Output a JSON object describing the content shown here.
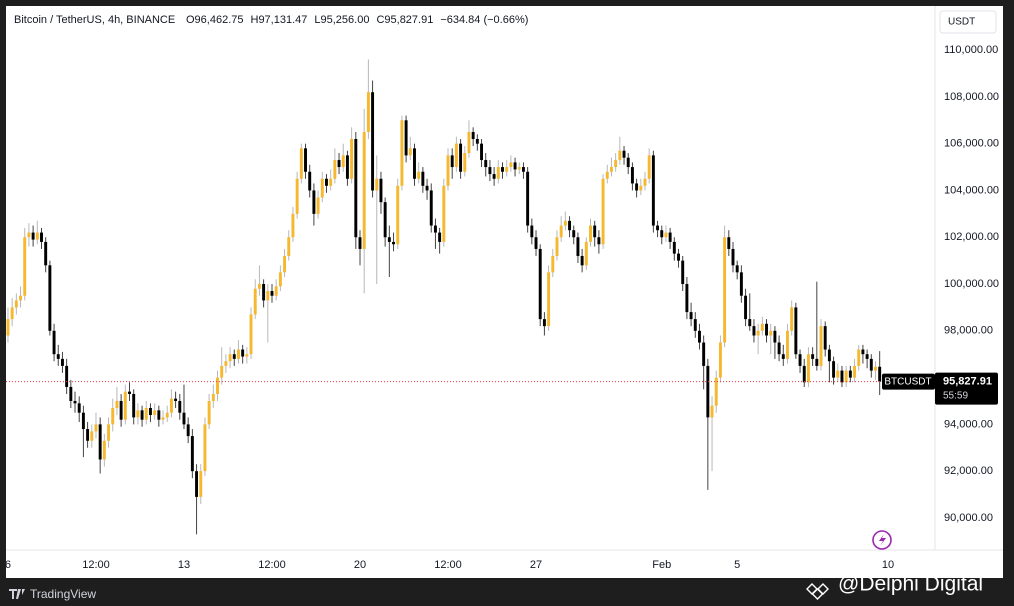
{
  "chart_data": {
    "type": "candlestick",
    "title": "Bitcoin / TetherUS, 4h, BINANCE",
    "ohlc_header": [
      "O96,462.75",
      "H97,131.47",
      "L95,256.00",
      "C95,827.91"
    ],
    "change": "−634.84 (−0.66%)",
    "currency": "USDT",
    "symbol": "BTCUSDT",
    "last_price": {
      "value": 95827.91,
      "label": "95,827.91"
    },
    "countdown": "55:59",
    "up_color": "#f5b82e",
    "down_color": "#000000",
    "grid": false,
    "brand": "TradingView",
    "watermark": "@Delphi Digital",
    "xlim": [
      -1.9,
      221.2
    ],
    "xticks": [
      {
        "value": 0,
        "label": "6"
      },
      {
        "value": 21,
        "label": "12:00"
      },
      {
        "value": 42,
        "label": "13"
      },
      {
        "value": 63,
        "label": "12:00"
      },
      {
        "value": 84,
        "label": "20"
      },
      {
        "value": 105,
        "label": "12:00"
      },
      {
        "value": 126,
        "label": "27"
      },
      {
        "value": 156,
        "label": "Feb"
      },
      {
        "value": 174,
        "label": "5"
      },
      {
        "value": 210,
        "label": "10"
      }
    ],
    "ylim": [
      88630,
      111800
    ],
    "yticks": [
      {
        "value": 90000,
        "label": "90,000.00"
      },
      {
        "value": 92000,
        "label": "92,000.00"
      },
      {
        "value": 94000,
        "label": "94,000.00"
      },
      {
        "value": 96000,
        "label": "96,000.00"
      },
      {
        "value": 98000,
        "label": "98,000.00"
      },
      {
        "value": 100000,
        "label": "100,000.00"
      },
      {
        "value": 102000,
        "label": "102,000.00"
      },
      {
        "value": 104000,
        "label": "104,000.00"
      },
      {
        "value": 106000,
        "label": "106,000.00"
      },
      {
        "value": 108000,
        "label": "108,000.00"
      },
      {
        "value": 110000,
        "label": "110,000.00"
      }
    ],
    "candles": [
      [
        97800,
        99000,
        97500,
        98500
      ],
      [
        98500,
        99400,
        98200,
        99000
      ],
      [
        99000,
        99600,
        98700,
        99300
      ],
      [
        99300,
        99900,
        99000,
        99500
      ],
      [
        99500,
        102400,
        99300,
        102000
      ],
      [
        102000,
        102600,
        101600,
        102200
      ],
      [
        102200,
        102500,
        101600,
        101900
      ],
      [
        101900,
        102700,
        101700,
        102200
      ],
      [
        102200,
        102400,
        101500,
        101800
      ],
      [
        101800,
        102000,
        100500,
        100800
      ],
      [
        100800,
        101000,
        97800,
        98000
      ],
      [
        98000,
        98300,
        96700,
        97000
      ],
      [
        97000,
        97400,
        96500,
        96800
      ],
      [
        96800,
        97100,
        96200,
        96500
      ],
      [
        96500,
        96800,
        95300,
        95600
      ],
      [
        95600,
        95900,
        94700,
        95000
      ],
      [
        95000,
        95400,
        94500,
        94900
      ],
      [
        94900,
        95200,
        94100,
        94500
      ],
      [
        94500,
        94800,
        92600,
        93800
      ],
      [
        93800,
        94100,
        93000,
        93300
      ],
      [
        93300,
        94000,
        93000,
        93700
      ],
      [
        93700,
        94500,
        93400,
        94000
      ],
      [
        94000,
        94300,
        91900,
        92500
      ],
      [
        92500,
        93600,
        92200,
        93300
      ],
      [
        93300,
        94300,
        93000,
        94000
      ],
      [
        94000,
        95100,
        93700,
        94700
      ],
      [
        94700,
        95600,
        94400,
        95000
      ],
      [
        95000,
        95300,
        93900,
        94200
      ],
      [
        94200,
        95700,
        94000,
        95400
      ],
      [
        95400,
        95800,
        95000,
        95300
      ],
      [
        95300,
        95500,
        94000,
        94300
      ],
      [
        94300,
        94900,
        94000,
        94600
      ],
      [
        94600,
        94800,
        93900,
        94200
      ],
      [
        94200,
        95000,
        94000,
        94700
      ],
      [
        94700,
        94900,
        94100,
        94400
      ],
      [
        94400,
        94900,
        94200,
        94600
      ],
      [
        94600,
        94800,
        93900,
        94200
      ],
      [
        94200,
        94600,
        94000,
        94300
      ],
      [
        94300,
        94800,
        94100,
        94500
      ],
      [
        94500,
        95500,
        94300,
        95100
      ],
      [
        95100,
        95400,
        94700,
        95000
      ],
      [
        95000,
        95300,
        94200,
        94500
      ],
      [
        94500,
        95700,
        93800,
        94000
      ],
      [
        94000,
        94300,
        93200,
        93500
      ],
      [
        93500,
        93800,
        91700,
        92000
      ],
      [
        92000,
        92300,
        89300,
        90900
      ],
      [
        90900,
        92300,
        90600,
        92000
      ],
      [
        92000,
        94300,
        91800,
        94000
      ],
      [
        94000,
        95300,
        93800,
        95000
      ],
      [
        95000,
        95700,
        94700,
        95300
      ],
      [
        95300,
        96300,
        95000,
        96000
      ],
      [
        96000,
        97300,
        95700,
        96500
      ],
      [
        96500,
        97000,
        96200,
        96700
      ],
      [
        96700,
        97300,
        96400,
        97000
      ],
      [
        97000,
        97200,
        96500,
        96800
      ],
      [
        96800,
        97600,
        96600,
        97200
      ],
      [
        97200,
        97400,
        96600,
        96900
      ],
      [
        96900,
        97300,
        96600,
        97000
      ],
      [
        97000,
        99000,
        96800,
        98700
      ],
      [
        98700,
        100200,
        98500,
        99800
      ],
      [
        99800,
        100800,
        99500,
        100000
      ],
      [
        100000,
        100200,
        99000,
        99300
      ],
      [
        99300,
        100000,
        97500,
        99700
      ],
      [
        99700,
        100000,
        99200,
        99500
      ],
      [
        99500,
        100200,
        99300,
        99900
      ],
      [
        99900,
        100800,
        99700,
        100500
      ],
      [
        100500,
        101500,
        100300,
        101200
      ],
      [
        101200,
        102300,
        101000,
        102000
      ],
      [
        102000,
        103300,
        101800,
        103000
      ],
      [
        103000,
        104800,
        102800,
        104500
      ],
      [
        104500,
        106000,
        104300,
        105800
      ],
      [
        105800,
        106000,
        104500,
        104800
      ],
      [
        104800,
        105100,
        103700,
        104000
      ],
      [
        104000,
        104300,
        102500,
        103000
      ],
      [
        103000,
        104000,
        102800,
        103700
      ],
      [
        103700,
        104800,
        103500,
        104500
      ],
      [
        104500,
        104700,
        103900,
        104200
      ],
      [
        104200,
        104900,
        104000,
        104500
      ],
      [
        104500,
        105800,
        104300,
        105300
      ],
      [
        105300,
        105600,
        104700,
        105000
      ],
      [
        105000,
        106000,
        104800,
        105500
      ],
      [
        105500,
        105700,
        104200,
        104500
      ],
      [
        104500,
        106700,
        104300,
        106200
      ],
      [
        106200,
        106500,
        101500,
        102000
      ],
      [
        102000,
        102300,
        100800,
        101500
      ],
      [
        101500,
        107500,
        99600,
        106500
      ],
      [
        106500,
        109600,
        106200,
        108200
      ],
      [
        108200,
        108700,
        103700,
        104000
      ],
      [
        104000,
        105500,
        100000,
        104500
      ],
      [
        104500,
        104800,
        103000,
        103500
      ],
      [
        103500,
        103700,
        101600,
        102000
      ],
      [
        102000,
        102500,
        100300,
        101800
      ],
      [
        101800,
        102200,
        101400,
        101700
      ],
      [
        101700,
        104500,
        101500,
        104200
      ],
      [
        104200,
        107200,
        104000,
        107000
      ],
      [
        107000,
        107200,
        105200,
        105500
      ],
      [
        105500,
        106300,
        105300,
        105800
      ],
      [
        105800,
        106000,
        104200,
        104500
      ],
      [
        104500,
        105200,
        104300,
        104800
      ],
      [
        104800,
        105000,
        103900,
        104200
      ],
      [
        104200,
        104500,
        103600,
        104000
      ],
      [
        104000,
        104300,
        102200,
        102500
      ],
      [
        102500,
        102800,
        101500,
        102200
      ],
      [
        102200,
        102400,
        101300,
        101800
      ],
      [
        101800,
        104500,
        101600,
        104200
      ],
      [
        104200,
        105800,
        104000,
        105500
      ],
      [
        105500,
        105800,
        104500,
        105000
      ],
      [
        105000,
        106300,
        104800,
        106000
      ],
      [
        106000,
        106200,
        104500,
        104800
      ],
      [
        104800,
        105900,
        104600,
        105600
      ],
      [
        105600,
        107000,
        105400,
        106500
      ],
      [
        106500,
        106700,
        105900,
        106200
      ],
      [
        106200,
        106400,
        105700,
        106000
      ],
      [
        106000,
        106200,
        105000,
        105300
      ],
      [
        105300,
        105600,
        104600,
        105000
      ],
      [
        105000,
        105300,
        104400,
        104700
      ],
      [
        104700,
        105000,
        104200,
        104500
      ],
      [
        104500,
        105300,
        104300,
        105000
      ],
      [
        105000,
        105200,
        104500,
        104800
      ],
      [
        104800,
        105300,
        104600,
        105000
      ],
      [
        105000,
        105500,
        104800,
        105200
      ],
      [
        105200,
        105400,
        104600,
        104900
      ],
      [
        104900,
        105200,
        104700,
        105000
      ],
      [
        105000,
        105200,
        104500,
        104800
      ],
      [
        104800,
        105000,
        102200,
        102500
      ],
      [
        102500,
        102800,
        101700,
        102000
      ],
      [
        102000,
        102300,
        101200,
        101500
      ],
      [
        101500,
        101700,
        98200,
        98500
      ],
      [
        98500,
        98800,
        97800,
        98200
      ],
      [
        98200,
        100800,
        98000,
        100500
      ],
      [
        100500,
        101500,
        100300,
        101200
      ],
      [
        101200,
        102300,
        101000,
        102000
      ],
      [
        102000,
        102900,
        101800,
        102500
      ],
      [
        102500,
        103100,
        102300,
        102700
      ],
      [
        102700,
        102900,
        102000,
        102300
      ],
      [
        102300,
        102500,
        101700,
        102000
      ],
      [
        102000,
        102200,
        100900,
        101200
      ],
      [
        101200,
        101500,
        100500,
        100800
      ],
      [
        100800,
        102000,
        100600,
        101800
      ],
      [
        101800,
        102800,
        101600,
        102500
      ],
      [
        102500,
        102700,
        101600,
        102000
      ],
      [
        102000,
        102300,
        101300,
        101700
      ],
      [
        101700,
        104700,
        101500,
        104500
      ],
      [
        104500,
        105100,
        104300,
        104800
      ],
      [
        104800,
        105400,
        104600,
        105000
      ],
      [
        105000,
        105600,
        104800,
        105300
      ],
      [
        105300,
        106300,
        105100,
        105700
      ],
      [
        105700,
        105900,
        105100,
        105400
      ],
      [
        105400,
        105600,
        104700,
        105000
      ],
      [
        105000,
        105200,
        104000,
        104300
      ],
      [
        104300,
        104500,
        103700,
        104000
      ],
      [
        104000,
        104500,
        103800,
        104200
      ],
      [
        104200,
        104800,
        104000,
        104500
      ],
      [
        104500,
        105800,
        104300,
        105500
      ],
      [
        105500,
        105700,
        102200,
        102500
      ],
      [
        102500,
        102700,
        102000,
        102300
      ],
      [
        102300,
        102500,
        101700,
        102000
      ],
      [
        102000,
        102500,
        101800,
        102200
      ],
      [
        102200,
        102400,
        101500,
        101800
      ],
      [
        101800,
        102000,
        101000,
        101300
      ],
      [
        101300,
        101500,
        100700,
        101000
      ],
      [
        101000,
        101200,
        99700,
        100000
      ],
      [
        100000,
        100300,
        98500,
        98800
      ],
      [
        98800,
        99200,
        98200,
        98500
      ],
      [
        98500,
        98800,
        97700,
        98000
      ],
      [
        98000,
        98300,
        97200,
        97500
      ],
      [
        97500,
        97800,
        95500,
        96500
      ],
      [
        96500,
        96800,
        91200,
        94300
      ],
      [
        94300,
        95200,
        92000,
        94800
      ],
      [
        94800,
        96300,
        94500,
        96000
      ],
      [
        96000,
        97800,
        95800,
        97500
      ],
      [
        97500,
        102500,
        97300,
        102000
      ],
      [
        102000,
        102300,
        101200,
        101500
      ],
      [
        101500,
        101800,
        100500,
        100800
      ],
      [
        100800,
        101000,
        100200,
        100500
      ],
      [
        100500,
        100800,
        99200,
        99500
      ],
      [
        99500,
        99800,
        98200,
        98500
      ],
      [
        98500,
        99600,
        98000,
        98200
      ],
      [
        98200,
        98500,
        97500,
        97800
      ],
      [
        97800,
        98300,
        97000,
        98000
      ],
      [
        98000,
        98600,
        97800,
        98300
      ],
      [
        98300,
        98500,
        97500,
        97800
      ],
      [
        97800,
        98300,
        97000,
        98000
      ],
      [
        98000,
        98200,
        96800,
        97500
      ],
      [
        97500,
        97800,
        96700,
        97000
      ],
      [
        97000,
        97400,
        96500,
        96800
      ],
      [
        96800,
        98300,
        96600,
        98000
      ],
      [
        98000,
        99300,
        97800,
        99000
      ],
      [
        99000,
        99200,
        96800,
        97000
      ],
      [
        97000,
        97200,
        96200,
        96500
      ],
      [
        96500,
        96800,
        95600,
        95800
      ],
      [
        95800,
        97300,
        95600,
        97000
      ],
      [
        97000,
        97300,
        96500,
        96800
      ],
      [
        96800,
        100100,
        96300,
        96500
      ],
      [
        96500,
        98500,
        96300,
        98200
      ],
      [
        98200,
        98400,
        96900,
        97200
      ],
      [
        97200,
        97400,
        95800,
        96700
      ],
      [
        96700,
        96900,
        95700,
        96000
      ],
      [
        96000,
        96600,
        95800,
        96300
      ],
      [
        96300,
        96500,
        95600,
        95800
      ],
      [
        95800,
        96500,
        95600,
        96300
      ],
      [
        96300,
        96500,
        95800,
        96000
      ],
      [
        96000,
        96800,
        95800,
        96500
      ],
      [
        96500,
        97400,
        96300,
        97200
      ],
      [
        97200,
        97400,
        96600,
        97000
      ],
      [
        97000,
        97200,
        96400,
        96800
      ],
      [
        96800,
        97000,
        96000,
        96300
      ],
      [
        96300,
        96700,
        95900,
        96462.75
      ],
      [
        96462.75,
        97131.47,
        95256,
        95827.91
      ]
    ]
  }
}
